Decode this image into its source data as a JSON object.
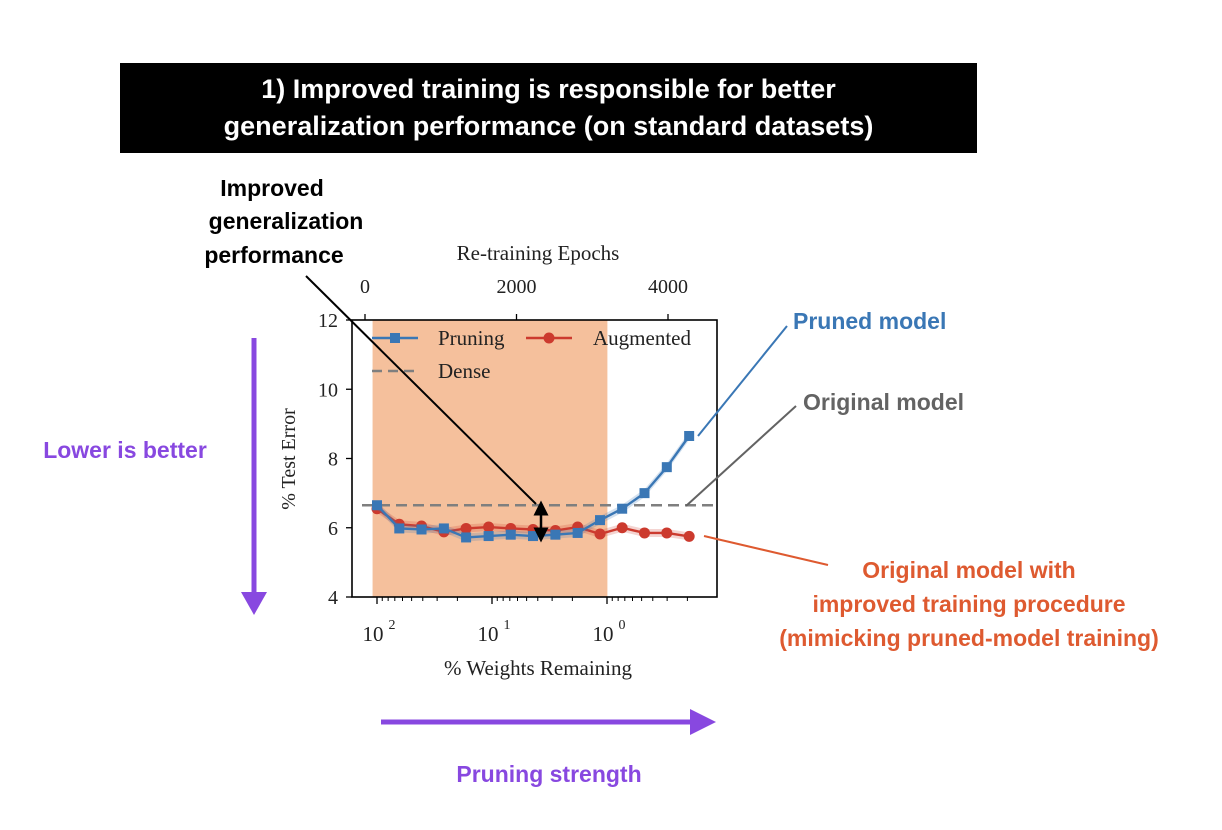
{
  "banner": {
    "line1": "1) Improved training is responsible for better",
    "line2": "generalization performance (on standard datasets)"
  },
  "annotations": {
    "improved_line1": "Improved",
    "improved_line2": "generalization",
    "improved_line3": "performance",
    "pruned_model": "Pruned model",
    "original_model": "Original model",
    "augmented_line1": "Original model with",
    "augmented_line2": "improved training procedure",
    "augmented_line3": "(mimicking pruned-model training)",
    "lower_is_better": "Lower is better",
    "pruning_strength": "Pruning strength"
  },
  "colors": {
    "pruning": "#3a77b5",
    "augmented": "#cc3a2e",
    "dense": "#7f7f7f",
    "shade": "#f5c09c",
    "purple": "#8848e0",
    "pruned_label": "#3a77b5",
    "original_label": "#636363",
    "augmented_label": "#de5a30"
  },
  "chart_data": {
    "type": "line",
    "xlabel": "% Weights Remaining",
    "x2label": "Re-training Epochs",
    "ylabel": "% Test Error",
    "ylim": [
      4,
      12
    ],
    "yticks": [
      "4",
      "6",
      "8",
      "10",
      "12"
    ],
    "xticks": [
      {
        "base": "10",
        "exp": "2",
        "value": 100
      },
      {
        "base": "10",
        "exp": "1",
        "value": 10
      },
      {
        "base": "10",
        "exp": "0",
        "value": 1
      }
    ],
    "x2ticks": [
      {
        "label": "0",
        "value": 0
      },
      {
        "label": "2000",
        "value": 2000
      },
      {
        "label": "4000",
        "value": 4000
      }
    ],
    "x": [
      100,
      64,
      41,
      26.2,
      16.8,
      10.7,
      6.87,
      4.4,
      2.81,
      1.8,
      1.15,
      0.738,
      0.472,
      0.302,
      0.193
    ],
    "series": [
      {
        "name": "Pruning",
        "marker": "square",
        "values": [
          6.65,
          5.98,
          5.95,
          5.98,
          5.72,
          5.76,
          5.8,
          5.76,
          5.8,
          5.85,
          6.22,
          6.55,
          7.0,
          7.75,
          8.65
        ]
      },
      {
        "name": "Augmented",
        "marker": "circle",
        "values": [
          6.55,
          6.1,
          6.05,
          5.88,
          5.98,
          6.02,
          5.98,
          5.95,
          5.92,
          6.02,
          5.82,
          6.0,
          5.85,
          5.85,
          5.75
        ]
      },
      {
        "name": "Dense",
        "style": "dashed",
        "constant": 6.65
      }
    ],
    "shaded_region": {
      "from_epochs": 100,
      "to_epochs": 3200
    },
    "legend": "top-left"
  }
}
